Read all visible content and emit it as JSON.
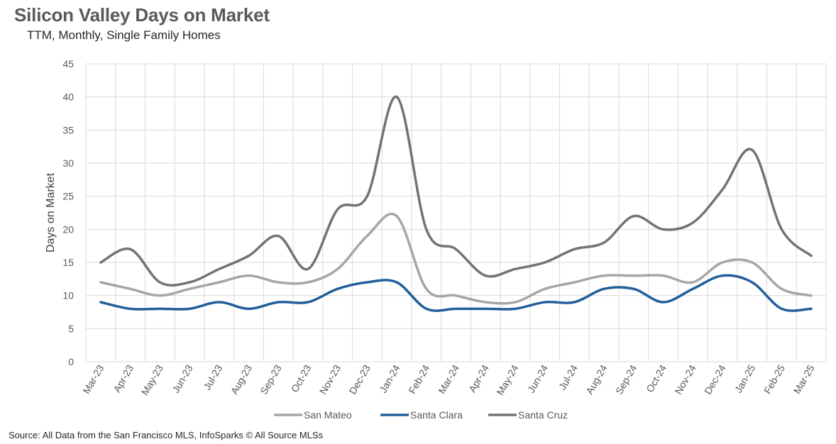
{
  "header": {
    "title": "Silicon Valley Days on Market",
    "subtitle": "TTM, Monthly, Single Family Homes"
  },
  "footer": {
    "source": "Source: All Data from the San Francisco MLS, InfoSparks © All Source MLSs"
  },
  "chart_data": {
    "type": "line",
    "title": "Silicon Valley Days on Market",
    "subtitle": "TTM, Monthly, Single Family Homes",
    "xlabel": "",
    "ylabel": "Days on Market",
    "ylim": [
      0,
      45
    ],
    "yticks": [
      0,
      5,
      10,
      15,
      20,
      25,
      30,
      35,
      40,
      45
    ],
    "grid": true,
    "legend": "bottom",
    "categories": [
      "Mar-23",
      "Apr-23",
      "May-23",
      "Jun-23",
      "Jul-23",
      "Aug-23",
      "Sep-23",
      "Oct-23",
      "Nov-23",
      "Dec-23",
      "Jan-24",
      "Feb-24",
      "Mar-24",
      "Apr-24",
      "May-24",
      "Jun-24",
      "Jul-24",
      "Aug-24",
      "Sep-24",
      "Oct-24",
      "Nov-24",
      "Dec-24",
      "Jan-25",
      "Feb-25",
      "Mar-25"
    ],
    "series": [
      {
        "name": "San Mateo",
        "color": "#a6a6a6",
        "values": [
          12,
          11,
          10,
          11,
          12,
          13,
          12,
          12,
          14,
          19,
          22,
          11,
          10,
          9,
          9,
          11,
          12,
          13,
          13,
          13,
          12,
          15,
          15,
          11,
          10
        ]
      },
      {
        "name": "Santa Clara",
        "color": "#215f9a",
        "values": [
          9,
          8,
          8,
          8,
          9,
          8,
          9,
          9,
          11,
          12,
          12,
          8,
          8,
          8,
          8,
          9,
          9,
          11,
          11,
          9,
          11,
          13,
          12,
          8,
          8
        ]
      },
      {
        "name": "Santa Cruz",
        "color": "#737373",
        "values": [
          15,
          17,
          12,
          12,
          14,
          16,
          19,
          14,
          23,
          25,
          40,
          20,
          17,
          13,
          14,
          15,
          17,
          18,
          22,
          20,
          21,
          26,
          32,
          20,
          16
        ]
      }
    ]
  }
}
